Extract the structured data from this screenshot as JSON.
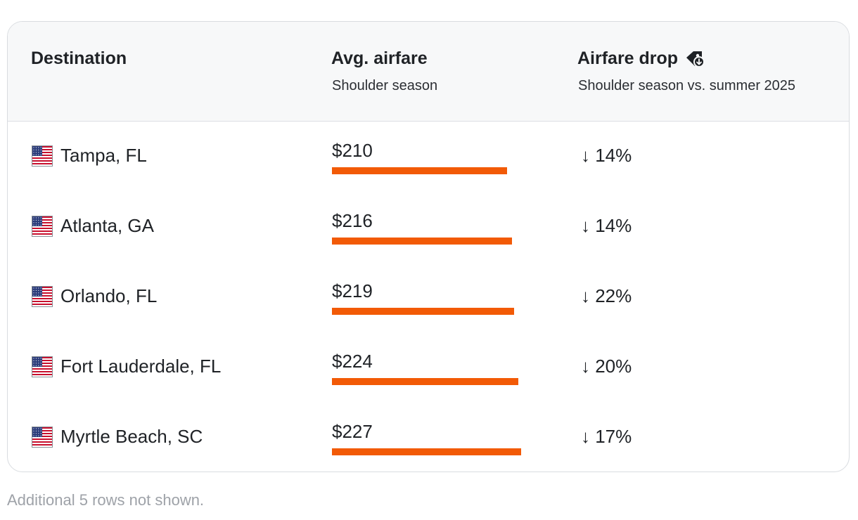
{
  "header": {
    "col1": {
      "title": "Destination"
    },
    "col2": {
      "title": "Avg. airfare",
      "subtitle": "Shoulder season"
    },
    "col3": {
      "title": "Airfare drop",
      "subtitle": "Shoulder season vs. summer 2025",
      "icon": "price-tag-down-icon"
    }
  },
  "rows": [
    {
      "flag": "us-flag-icon",
      "destination": "Tampa, FL",
      "price_label": "$210",
      "drop_label": "↓ 14%"
    },
    {
      "flag": "us-flag-icon",
      "destination": "Atlanta, GA",
      "price_label": "$216",
      "drop_label": "↓ 14%"
    },
    {
      "flag": "us-flag-icon",
      "destination": "Orlando, FL",
      "price_label": "$219",
      "drop_label": "↓ 22%"
    },
    {
      "flag": "us-flag-icon",
      "destination": "Fort Lauderdale, FL",
      "price_label": "$224",
      "drop_label": "↓ 20%"
    },
    {
      "flag": "us-flag-icon",
      "destination": "Myrtle Beach, SC",
      "price_label": "$227",
      "drop_label": "↓ 17%"
    }
  ],
  "footnote": "Additional 5 rows not shown.",
  "colors": {
    "bar": "#f25a06",
    "header_bg": "#f7f8f9",
    "footnote": "#9ea2a8"
  },
  "chart_data": {
    "type": "table",
    "categories": [
      "Tampa, FL",
      "Atlanta, GA",
      "Orlando, FL",
      "Fort Lauderdale, FL",
      "Myrtle Beach, SC"
    ],
    "series": [
      {
        "name": "Avg. airfare",
        "values": [
          210,
          216,
          219,
          224,
          227
        ]
      },
      {
        "name": "Airfare drop",
        "values": [
          -14,
          -14,
          -22,
          -20,
          -17
        ]
      }
    ],
    "bar_scale_max": 228
  }
}
